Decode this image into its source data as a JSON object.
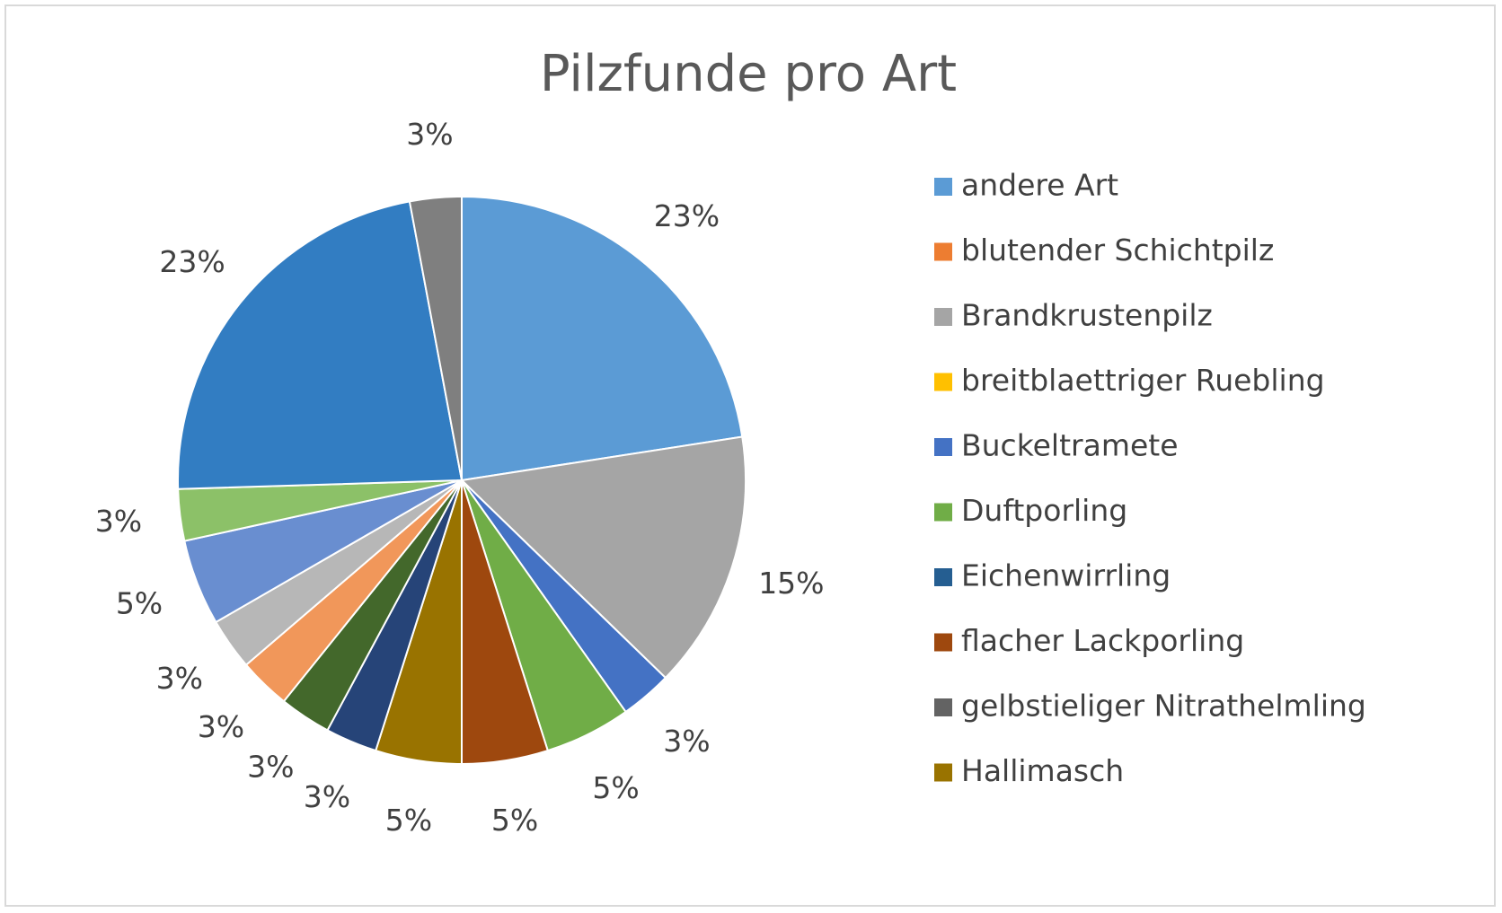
{
  "chart_data": {
    "type": "pie",
    "title": "Pilzfunde pro Art",
    "slices": [
      {
        "label": "andere Art",
        "value": 23,
        "pct_label": "23%",
        "color": "#5b9bd5"
      },
      {
        "label": "Brandkrustenpilz",
        "value": 15,
        "pct_label": "15%",
        "color": "#a5a5a5"
      },
      {
        "label": "Buckeltramete",
        "value": 3,
        "pct_label": "3%",
        "color": "#4472c4"
      },
      {
        "label": "Duftporling",
        "value": 5,
        "pct_label": "5%",
        "color": "#70ad47"
      },
      {
        "label": "flacher Lackporling",
        "value": 5,
        "pct_label": "5%",
        "color": "#9e480e"
      },
      {
        "label": "Hallimasch",
        "value": 5,
        "pct_label": "5%",
        "color": "#997300"
      },
      {
        "label": "",
        "value": 3,
        "pct_label": "3%",
        "color": "#264478"
      },
      {
        "label": "",
        "value": 3,
        "pct_label": "3%",
        "color": "#43682b"
      },
      {
        "label": "",
        "value": 3,
        "pct_label": "3%",
        "color": "#f1975a"
      },
      {
        "label": "",
        "value": 3,
        "pct_label": "3%",
        "color": "#b7b7b7"
      },
      {
        "label": "",
        "value": 5,
        "pct_label": "5%",
        "color": "#698ed0"
      },
      {
        "label": "",
        "value": 3,
        "pct_label": "3%",
        "color": "#8cc168"
      },
      {
        "label": "",
        "value": 23,
        "pct_label": "23%",
        "color": "#327dc2"
      },
      {
        "label": "",
        "value": 3,
        "pct_label": "3%",
        "color": "#7f7f7f"
      }
    ],
    "legend": [
      {
        "label": "andere Art",
        "color": "#5b9bd5"
      },
      {
        "label": "blutender Schichtpilz",
        "color": "#ed7d31"
      },
      {
        "label": "Brandkrustenpilz",
        "color": "#a5a5a5"
      },
      {
        "label": "breitblaettriger Ruebling",
        "color": "#ffc000"
      },
      {
        "label": "Buckeltramete",
        "color": "#4472c4"
      },
      {
        "label": "Duftporling",
        "color": "#70ad47"
      },
      {
        "label": "Eichenwirrling",
        "color": "#255e91"
      },
      {
        "label": "flacher Lackporling",
        "color": "#9e480e"
      },
      {
        "label": "gelbstieliger Nitrathelmling",
        "color": "#636363"
      },
      {
        "label": "Hallimasch",
        "color": "#997300"
      }
    ],
    "legend_position": "right"
  }
}
